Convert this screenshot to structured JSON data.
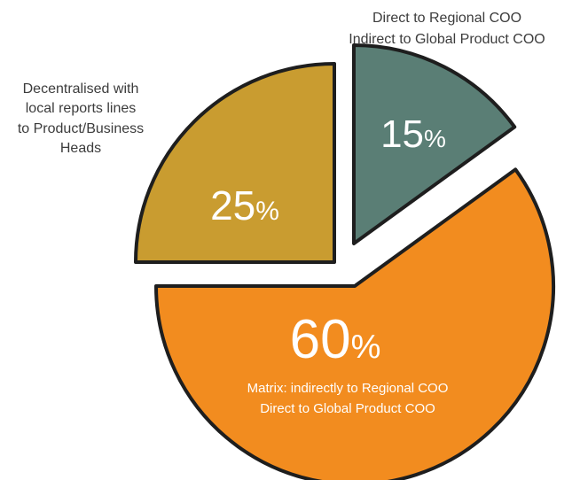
{
  "chart_data": {
    "type": "pie",
    "title": "",
    "slices": [
      {
        "value": 60,
        "percent_label": "60",
        "percent_sign": "%",
        "color": "#F28C1F",
        "exploded": true,
        "label_lines": [
          "Matrix: indirectly to Regional COO",
          "Direct to Global Product COO"
        ]
      },
      {
        "value": 25,
        "percent_label": "25",
        "percent_sign": "%",
        "color": "#C99C30",
        "exploded": true,
        "label_lines": [
          "Decentralised with",
          "local reports lines",
          "to Product/Business",
          "Heads"
        ]
      },
      {
        "value": 15,
        "percent_label": "15",
        "percent_sign": "%",
        "color": "#5A7E75",
        "exploded": true,
        "label_lines": [
          "Direct to Regional COO",
          "Indirect to Global Product COO"
        ]
      }
    ],
    "outline_color": "#1e1e1e"
  }
}
